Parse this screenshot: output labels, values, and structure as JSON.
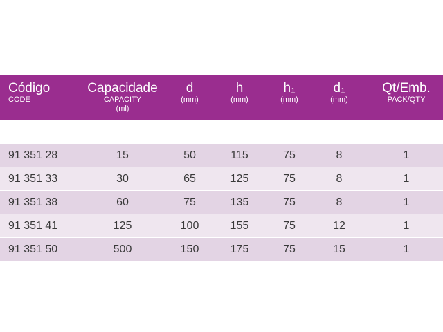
{
  "header": {
    "codigo": "Código",
    "code": "CODE",
    "capacidade": "Capacidade",
    "capacity": "CAPACITY",
    "ml": "(ml)",
    "d": "d",
    "h": "h",
    "h1": "h₁",
    "d1": "d₁",
    "mm": "(mm)",
    "qt": "Qt/Emb.",
    "pack": "PACK/QTY"
  },
  "rows": [
    {
      "code": "91 351 28",
      "capacity": "15",
      "d": "50",
      "h": "115",
      "h1": "75",
      "d1": "8",
      "qty": "1"
    },
    {
      "code": "91 351 33",
      "capacity": "30",
      "d": "65",
      "h": "125",
      "h1": "75",
      "d1": "8",
      "qty": "1"
    },
    {
      "code": "91 351 38",
      "capacity": "60",
      "d": "75",
      "h": "135",
      "h1": "75",
      "d1": "8",
      "qty": "1"
    },
    {
      "code": "91 351 41",
      "capacity": "125",
      "d": "100",
      "h": "155",
      "h1": "75",
      "d1": "12",
      "qty": "1"
    },
    {
      "code": "91 351 50",
      "capacity": "500",
      "d": "150",
      "h": "175",
      "h1": "75",
      "d1": "15",
      "qty": "1"
    }
  ],
  "colors": {
    "header_bg": "#9a2d8f",
    "row_dark": "#e3d4e4",
    "row_light": "#efe6ef"
  }
}
